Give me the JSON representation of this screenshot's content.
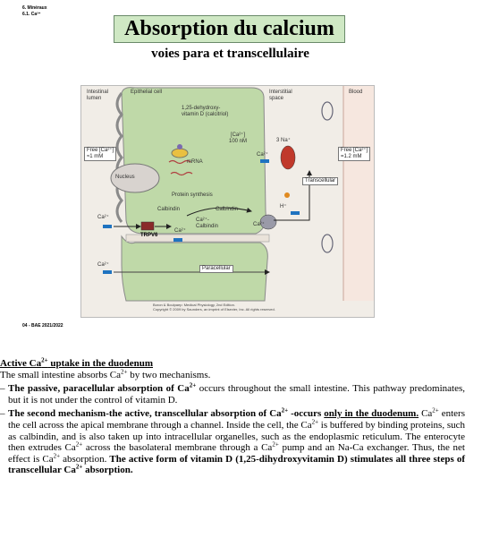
{
  "corner": {
    "line1": "6. Minéraux",
    "line2": "6.1. Ca²⁺"
  },
  "slide": {
    "title": "Absorption du calcium",
    "subtitle": "voies para et transcellulaire"
  },
  "figure": {
    "regions": {
      "lumen": "Intestinal\nlumen",
      "epithelial": "Epithelial cell",
      "interstitial": "Interstitial\nspace",
      "blood": "Blood"
    },
    "vitd": "1,25-dehydroxy-",
    "vitd2": "vitamin D (calcitriol)",
    "free_lumen": "Free [Ca²⁺]\n≈1 mM",
    "free_blood": "Free [Ca²⁺]\n=1.2 mM",
    "ca_intra": "[Ca²⁺]\n100 nM",
    "nucleus": "Nucleus",
    "mrna": "mRNA",
    "protein_synthesis": "Protein synthesis",
    "calbindin1": "Calbindin",
    "calbindin2": "Calbindin",
    "ca_calbindin": "Ca²⁺-\nCalbindin",
    "ca": "Ca²⁺",
    "trpv6": "TRPV6",
    "na3": "3 Na⁺",
    "h": "H⁺",
    "transcellular": "Transcellular",
    "paracellular": "Paracellular",
    "credit1": "Boron & Boulpaep: Medical Physiology, 2nd Edition.",
    "credit2": "Copyright © 2009 by Saunders, an imprint of Elsevier, Inc. All rights reserved."
  },
  "footer_tag": "04 - BAE 2021/2022",
  "text": {
    "heading_a": "Active Ca",
    "heading_sup": "2+",
    "heading_b": " uptake in the duodenum",
    "intro_a": "The small intestine absorbs Ca",
    "intro_sup": "2+",
    "intro_b": " by two mechanisms.",
    "b1_bold_a": "The passive, paracellular absorption of Ca",
    "b1_sup": "2+",
    "b1_rest": " occurs throughout the small intestine. This pathway predominates, but it is not under the control of vitamin D.",
    "b2_bold_a": "The second mechanism-the active, transcellular absorption of Ca",
    "b2_sup1": "2+",
    "b2_bold_b": " -occurs ",
    "b2_bold_u": "only in the duodenum.",
    "b2_t1": " Ca",
    "b2_sup2": "2+",
    "b2_t2": " enters the cell across the apical membrane through a channel. Inside the cell, the Ca",
    "b2_sup3": "2+",
    "b2_t3": " is buffered by binding proteins, such as calbindin, and is also taken up into intracellular organelles, such as the endoplasmic reticulum. The enterocyte then extrudes Ca",
    "b2_sup4": "2+",
    "b2_t4": " across the basolateral membrane through a Ca",
    "b2_sup5": "2+",
    "b2_t5": " pump and an Na-Ca exchanger. Thus, the net effect is Ca",
    "b2_sup6": "2+",
    "b2_t6": " absorption. ",
    "b2_bold_c": "The active form of vitamin D (1,25-dihydroxyvitamin D) stimulates all three steps of transcellular Ca",
    "b2_sup7": "2+",
    "b2_bold_d": " absorption."
  }
}
